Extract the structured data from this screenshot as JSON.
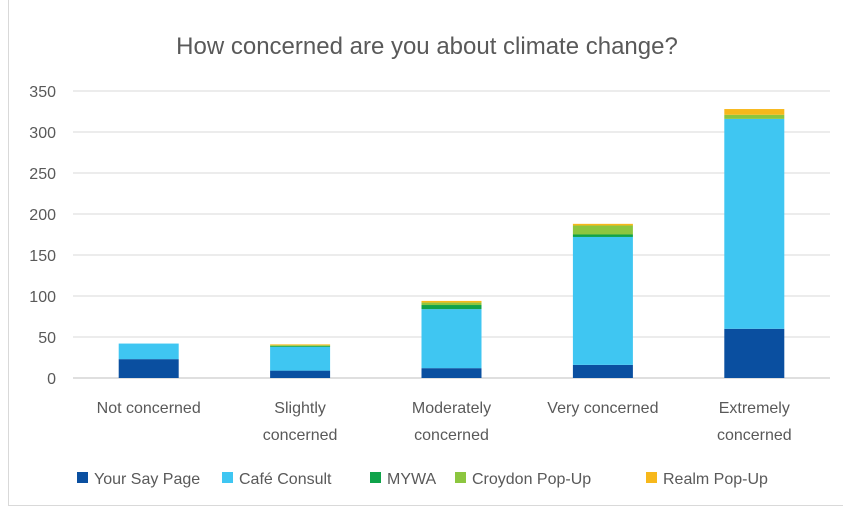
{
  "chart_data": {
    "type": "bar",
    "stacked": true,
    "title": "How concerned are you about climate change?",
    "categories": [
      [
        "Not concerned"
      ],
      [
        "Slightly",
        "concerned"
      ],
      [
        "Moderately",
        "concerned"
      ],
      [
        "Very concerned"
      ],
      [
        "Extremely",
        "concerned"
      ]
    ],
    "ylim": [
      0,
      350
    ],
    "yticks": [
      0,
      50,
      100,
      150,
      200,
      250,
      300,
      350
    ],
    "grid": true,
    "legend_position": "bottom",
    "series": [
      {
        "name": "Your Say Page",
        "color": "#0a4fa0",
        "values": [
          23,
          9,
          12,
          16,
          60
        ]
      },
      {
        "name": "Café Consult",
        "color": "#3fc6f2",
        "values": [
          19,
          29,
          72,
          156,
          256
        ]
      },
      {
        "name": "MYWA",
        "color": "#0fa34a",
        "values": [
          0,
          1,
          5,
          3,
          0
        ]
      },
      {
        "name": "Croydon Pop-Up",
        "color": "#8cc63f",
        "values": [
          0,
          1,
          3,
          11,
          5
        ]
      },
      {
        "name": "Realm Pop-Up",
        "color": "#f7b81b",
        "values": [
          0,
          1,
          2,
          2,
          7
        ]
      }
    ]
  }
}
